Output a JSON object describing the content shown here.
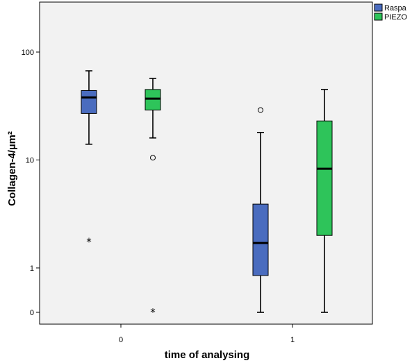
{
  "chart_data": {
    "type": "boxplot",
    "xlabel": "time of analysing",
    "ylabel": "Collagen-4/µm²",
    "y_scale": "log-like (values shown: 0, 1, 10, 100)",
    "y_ticks": [
      {
        "value": 0,
        "label": "0"
      },
      {
        "value": 1,
        "label": "1"
      },
      {
        "value": 10,
        "label": "10"
      },
      {
        "value": 100,
        "label": "100"
      }
    ],
    "categories": [
      "0",
      "1"
    ],
    "grid": false,
    "legend_position": "top-right",
    "series": [
      {
        "name": "Raspa",
        "color": "#4a6cbf",
        "boxes": [
          {
            "category": "0",
            "whisker_low": 14,
            "q1": 27,
            "median": 38,
            "q3": 44,
            "whisker_high": 67,
            "outliers": [
              {
                "value": 1.8,
                "marker": "star"
              }
            ]
          },
          {
            "category": "1",
            "whisker_low": 0,
            "q1": 0.85,
            "median": 1.7,
            "q3": 3.9,
            "whisker_high": 18,
            "outliers": [
              {
                "value": 29,
                "marker": "circle"
              }
            ]
          }
        ]
      },
      {
        "name": "PIEZO",
        "color": "#2ec45a",
        "boxes": [
          {
            "category": "0",
            "whisker_low": 16,
            "q1": 29,
            "median": 37,
            "q3": 45,
            "whisker_high": 57,
            "outliers": [
              {
                "value": 10.5,
                "marker": "circle"
              },
              {
                "value": 0.4,
                "marker": "star"
              }
            ]
          },
          {
            "category": "1",
            "whisker_low": 0,
            "q1": 2.0,
            "median": 8.3,
            "q3": 23,
            "whisker_high": 45,
            "outliers": []
          }
        ]
      }
    ]
  }
}
